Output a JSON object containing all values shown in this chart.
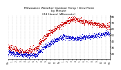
{
  "title": "Milwaukee Weather Outdoor Temp / Dew Point\nby Minute\n(24 Hours) (Alternate)",
  "title_fontsize": 3.2,
  "ylim": [
    10,
    82
  ],
  "xlim": [
    0,
    1440
  ],
  "yticks": [
    20,
    30,
    40,
    50,
    60,
    70,
    80
  ],
  "ytick_labels": [
    "20",
    "30",
    "40",
    "50",
    "60",
    "70",
    "80"
  ],
  "xtick_labels": [
    "Mn",
    "1",
    "2",
    "3",
    "4",
    "5",
    "6",
    "7",
    "8",
    "9",
    "10",
    "11",
    "No",
    "1",
    "2",
    "3",
    "4",
    "5",
    "6",
    "7",
    "8",
    "9",
    "10",
    "11",
    "Mn"
  ],
  "xtick_positions": [
    0,
    60,
    120,
    180,
    240,
    300,
    360,
    420,
    480,
    540,
    600,
    660,
    720,
    780,
    840,
    900,
    960,
    1020,
    1080,
    1140,
    1200,
    1260,
    1320,
    1380,
    1440
  ],
  "grid_color": "#bbbbbb",
  "bg_color": "#ffffff",
  "temp_color": "#cc0000",
  "dew_color": "#0000cc"
}
